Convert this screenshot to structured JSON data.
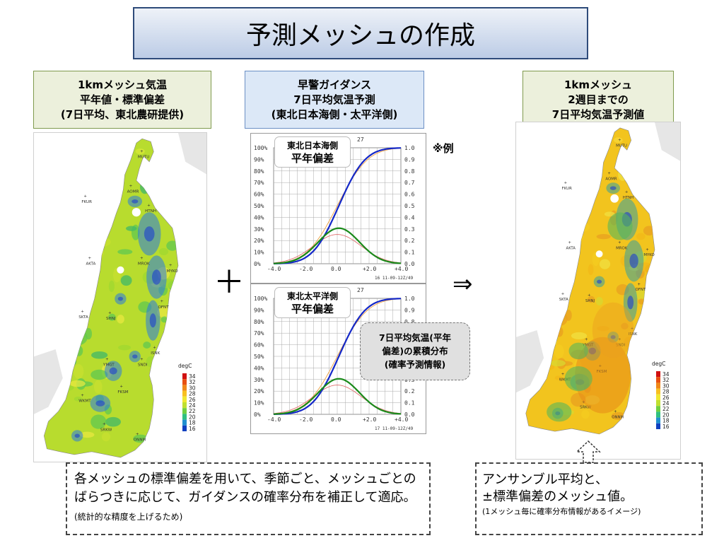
{
  "title": "予測メッシュの作成",
  "left_header": "1kmメッシュ気温\n平年値・標準偏差\n(7日平均、東北農研提供)",
  "center_header": "早警ガイダンス\n7日平均気温予測\n(東北日本海側・太平洋側)",
  "right_header": "1kmメッシュ\n2週目までの\n7日平均気温予測値",
  "example_label": "※例",
  "plus_symbol": "＋",
  "arrow_symbol": "⇒",
  "map": {
    "colorbar_title": "degC",
    "colorbar_ticks": [
      "34",
      "32",
      "30",
      "28",
      "26",
      "24",
      "22",
      "20",
      "18",
      "16"
    ],
    "stations": [
      "MUTU",
      "AOMR",
      "FKUR",
      "HTNH",
      "AKTA",
      "MROK",
      "MYKO",
      "OFNT",
      "SKTA",
      "SHNJ",
      "ISNK",
      "YMGT",
      "SNDI",
      "FKSM",
      "WKMT",
      "SRKW",
      "ONNM"
    ]
  },
  "chart_top": {
    "callout_line1": "東北日本海側",
    "callout_line2": "平年偏差",
    "date_stamp": "16 11-09-12Z/49",
    "header_fragment": "27"
  },
  "chart_bottom": {
    "callout_line1": "東北太平洋側",
    "callout_line2": "平年偏差",
    "date_stamp": "17 11-09-12Z/49",
    "header_fragment": "27"
  },
  "axes": {
    "left_ticks": [
      "100%",
      "90%",
      "80%",
      "70%",
      "60%",
      "50%",
      "40%",
      "30%",
      "20%",
      "10%",
      "0%"
    ],
    "right_ticks": [
      "1.0",
      "0.9",
      "0.8",
      "0.7",
      "0.6",
      "0.5",
      "0.4",
      "0.3",
      "0.2",
      "0.1",
      "0.0"
    ],
    "x_ticks": [
      "-4.0",
      "-2.0",
      "0.0",
      "+2.0",
      "+4.0"
    ]
  },
  "dist_callout": "7日平均気温(平年\n偏差)の累積分布\n(確率予測情報)",
  "note_left_main": "各メッシュの標準偏差を用いて、季節ごと、メッシュごとのばらつきに応じて、ガイダンスの確率分布を補正して適応。",
  "note_left_small": "(統計的な精度を上げるため)",
  "note_right_line1": "アンサンブル平均と、",
  "note_right_line2": "±標準偏差のメッシュ値。",
  "note_right_small": "(1メッシュ毎に確率分布情報があるイメージ)",
  "colors": {
    "map_left_base": "#b8dc2e",
    "map_right_base": "#f2c41e",
    "cdf_line": "#1428c8",
    "pdf_line": "#1a8a1a",
    "climate_cdf": "#f0a040",
    "climate_pdf": "#e07070"
  }
}
